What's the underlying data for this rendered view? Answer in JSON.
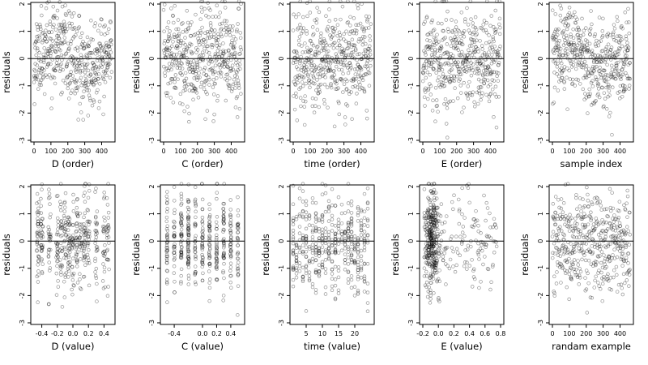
{
  "chart_data": [
    {
      "type": "scatter",
      "xlabel": "D (order)",
      "ylabel": "residuals",
      "xlim": [
        0,
        460
      ],
      "ylim": [
        -3,
        2
      ],
      "xticks": [
        0,
        100,
        200,
        300,
        400
      ],
      "yticks": [
        -3,
        -2,
        -1,
        0,
        1,
        2
      ],
      "hline": 0,
      "n": 460,
      "seed": 11,
      "pattern": "order_wave"
    },
    {
      "type": "scatter",
      "xlabel": "C (order)",
      "ylabel": "residuals",
      "xlim": [
        0,
        460
      ],
      "ylim": [
        -3,
        2
      ],
      "xticks": [
        0,
        100,
        200,
        300,
        400
      ],
      "yticks": [
        -3,
        -2,
        -1,
        0,
        1,
        2
      ],
      "hline": 0,
      "n": 460,
      "seed": 23,
      "pattern": "order_flat"
    },
    {
      "type": "scatter",
      "xlabel": "time (order)",
      "ylabel": "residuals",
      "xlim": [
        0,
        460
      ],
      "ylim": [
        -3,
        2
      ],
      "xticks": [
        0,
        100,
        200,
        300,
        400
      ],
      "yticks": [
        -3,
        -2,
        -1,
        0,
        1,
        2
      ],
      "hline": 0,
      "n": 460,
      "seed": 37,
      "pattern": "order_flat"
    },
    {
      "type": "scatter",
      "xlabel": "E (order)",
      "ylabel": "residuals",
      "xlim": [
        0,
        460
      ],
      "ylim": [
        -3,
        2
      ],
      "xticks": [
        0,
        100,
        200,
        300,
        400
      ],
      "yticks": [
        -3,
        -2,
        -1,
        0,
        1,
        2
      ],
      "hline": 0,
      "n": 460,
      "seed": 41,
      "pattern": "order_flat"
    },
    {
      "type": "scatter",
      "xlabel": "sample index",
      "ylabel": "residuals",
      "xlim": [
        0,
        460
      ],
      "ylim": [
        -3,
        2
      ],
      "xticks": [
        0,
        100,
        200,
        300,
        400
      ],
      "yticks": [
        -3,
        -2,
        -1,
        0,
        1,
        2
      ],
      "hline": 0,
      "n": 460,
      "seed": 53,
      "pattern": "order_wave"
    },
    {
      "type": "scatter",
      "xlabel": "D (value)",
      "ylabel": "residuals",
      "xlim": [
        -0.5,
        0.5
      ],
      "ylim": [
        -3,
        2
      ],
      "xticks": [
        -0.4,
        -0.2,
        0.0,
        0.2,
        0.4
      ],
      "xtick_labels": [
        "-0.4",
        "-0.2",
        "0.0",
        "0.2",
        "0.4"
      ],
      "yticks": [
        -3,
        -2,
        -1,
        0,
        1,
        2
      ],
      "hline": 0,
      "n": 460,
      "seed": 67,
      "pattern": "value_d"
    },
    {
      "type": "scatter",
      "xlabel": "C (value)",
      "ylabel": "residuals",
      "xlim": [
        -0.55,
        0.55
      ],
      "ylim": [
        -3,
        2
      ],
      "xticks": [
        -0.4,
        0.0,
        0.2,
        0.4
      ],
      "xtick_labels": [
        "-0.4",
        "0.0",
        "0.2",
        "0.4"
      ],
      "yticks": [
        -3,
        -2,
        -1,
        0,
        1,
        2
      ],
      "hline": 0,
      "n": 460,
      "seed": 71,
      "pattern": "value_c"
    },
    {
      "type": "scatter",
      "xlabel": "time (value)",
      "ylabel": "residuals",
      "xlim": [
        1,
        25
      ],
      "ylim": [
        -3,
        2
      ],
      "xticks": [
        5,
        10,
        15,
        20
      ],
      "yticks": [
        -3,
        -2,
        -1,
        0,
        1,
        2
      ],
      "hline": 0,
      "n": 460,
      "seed": 83,
      "pattern": "value_time"
    },
    {
      "type": "scatter",
      "xlabel": "E (value)",
      "ylabel": "residuals",
      "xlim": [
        -0.2,
        0.8
      ],
      "ylim": [
        -3,
        2
      ],
      "xticks": [
        -0.2,
        0.0,
        0.2,
        0.4,
        0.6,
        0.8
      ],
      "xtick_labels": [
        "-0.2",
        "0.0",
        "0.2",
        "0.4",
        "0.6",
        "0.8"
      ],
      "yticks": [
        -3,
        -2,
        -1,
        0,
        1,
        2
      ],
      "hline": 0,
      "n": 460,
      "seed": 97,
      "pattern": "value_e"
    },
    {
      "type": "scatter",
      "xlabel": "randam example",
      "ylabel": "residuals",
      "xlim": [
        0,
        460
      ],
      "ylim": [
        -3,
        2
      ],
      "xticks": [
        0,
        100,
        200,
        300,
        400
      ],
      "yticks": [
        -3,
        -2,
        -1,
        0,
        1,
        2
      ],
      "hline": 0,
      "n": 460,
      "seed": 101,
      "pattern": "order_flat"
    }
  ]
}
